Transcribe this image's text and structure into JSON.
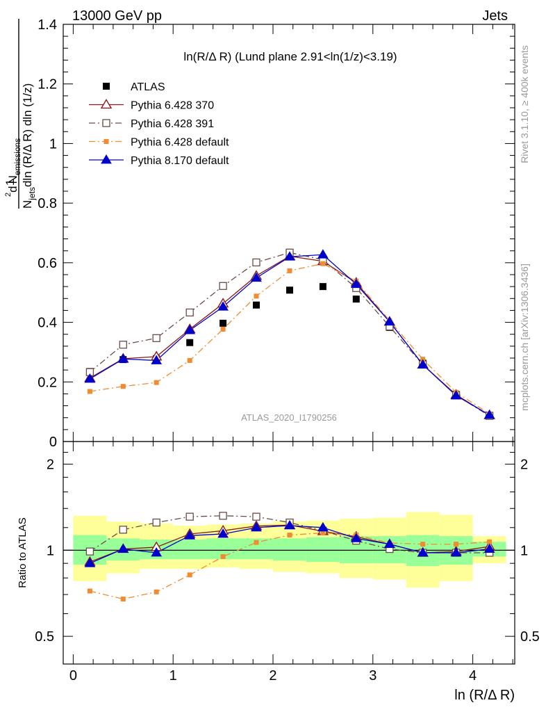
{
  "header": {
    "left": "13000 GeV pp",
    "right": "Jets"
  },
  "subtitle": "ln(R/Δ R) (Lund plane 2.91<ln(1/z)<3.19)",
  "watermark": "ATLAS_2020_I1790256",
  "side_labels": {
    "rivet": "Rivet 3.1.10, ≥ 400k events",
    "mcplots": "mcplots.cern.ch [arXiv:1306.3436]"
  },
  "legend": [
    "ATLAS",
    "Pythia 6.428 370",
    "Pythia 6.428 391",
    "Pythia 6.428 default",
    "Pythia 8.170 default"
  ],
  "colors": {
    "atlas": "#000000",
    "p370": "#8b1a1a",
    "p391": "#6b4a4a",
    "pdef": "#f28a30",
    "p8": "#0000cc",
    "band_inner": "#99ff99",
    "band_outer": "#ffff99"
  },
  "chart_data": [
    {
      "type": "scatter",
      "title": "ln(R/Δ R) (Lund plane 2.91<ln(1/z)<3.19)",
      "xlabel": "ln (R/Δ R)",
      "ylabel": "1/N_jets d²N_emissions / dln(R/Δ R) dln(1/z)",
      "xlim": [
        -0.1,
        4.42
      ],
      "ylim": [
        0,
        1.4
      ],
      "x_ticks": [
        "0",
        "1",
        "2",
        "3",
        "4"
      ],
      "y_ticks": [
        "0",
        "0.2",
        "0.4",
        "0.6",
        "0.8",
        "1",
        "1.2",
        "1.4"
      ],
      "x": [
        0.167,
        0.5,
        0.833,
        1.167,
        1.5,
        1.833,
        2.167,
        2.5,
        2.833,
        3.167,
        3.5,
        3.833,
        4.167
      ],
      "series": [
        {
          "name": "ATLAS",
          "values": [
            0.235,
            0.275,
            0.278,
            0.332,
            0.397,
            0.458,
            0.508,
            0.52,
            0.478,
            0.383,
            0.263,
            0.158,
            0.088
          ]
        },
        {
          "name": "Pythia 6.428 370",
          "values": [
            0.213,
            0.278,
            0.285,
            0.377,
            0.463,
            0.556,
            0.622,
            0.605,
            0.533,
            0.402,
            0.258,
            0.157,
            0.088
          ]
        },
        {
          "name": "Pythia 6.428 391",
          "values": [
            0.233,
            0.325,
            0.347,
            0.433,
            0.522,
            0.601,
            0.634,
            0.61,
            0.515,
            0.386,
            0.258,
            0.155,
            0.086
          ]
        },
        {
          "name": "Pythia 6.428 default",
          "values": [
            0.168,
            0.185,
            0.198,
            0.272,
            0.377,
            0.488,
            0.573,
            0.597,
            0.538,
            0.406,
            0.276,
            0.165,
            0.093
          ]
        },
        {
          "name": "Pythia 8.170 default",
          "values": [
            0.21,
            0.277,
            0.272,
            0.373,
            0.452,
            0.549,
            0.62,
            0.627,
            0.528,
            0.402,
            0.258,
            0.154,
            0.089
          ]
        }
      ]
    },
    {
      "type": "line",
      "ylabel": "Ratio to ATLAS",
      "xlabel": "ln (R/Δ R)",
      "yscale": "log",
      "ylim": [
        0.4,
        2.4
      ],
      "y_ticks": [
        "0.5",
        "1",
        "2"
      ],
      "x": [
        0.167,
        0.5,
        0.833,
        1.167,
        1.5,
        1.833,
        2.167,
        2.5,
        2.833,
        3.167,
        3.5,
        3.833,
        4.167
      ],
      "band_edges": [
        0,
        0.333,
        0.667,
        1.0,
        1.333,
        1.667,
        2.0,
        2.333,
        2.667,
        3.0,
        3.333,
        3.667,
        4.0,
        4.333
      ],
      "band_inner": {
        "low": [
          0.89,
          0.92,
          0.93,
          0.93,
          0.93,
          0.93,
          0.92,
          0.91,
          0.9,
          0.9,
          0.88,
          0.89,
          0.95
        ],
        "high": [
          1.13,
          1.1,
          1.09,
          1.09,
          1.1,
          1.1,
          1.1,
          1.11,
          1.12,
          1.12,
          1.13,
          1.12,
          1.07
        ]
      },
      "band_outer": {
        "low": [
          0.78,
          0.83,
          0.86,
          0.86,
          0.87,
          0.86,
          0.84,
          0.83,
          0.8,
          0.79,
          0.74,
          0.78,
          0.9
        ]
      },
      "band_outer_high": [
        1.32,
        1.26,
        1.24,
        1.22,
        1.23,
        1.24,
        1.26,
        1.27,
        1.29,
        1.3,
        1.36,
        1.33,
        1.12
      ],
      "series": [
        {
          "name": "Pythia 6.428 370",
          "values": [
            0.91,
            1.01,
            1.025,
            1.14,
            1.17,
            1.215,
            1.225,
            1.165,
            1.115,
            1.05,
            0.98,
            0.99,
            1.03
          ]
        },
        {
          "name": "Pythia 6.428 391",
          "values": [
            0.99,
            1.18,
            1.25,
            1.31,
            1.32,
            1.31,
            1.25,
            1.17,
            1.08,
            1.01,
            0.98,
            0.98,
            0.98
          ]
        },
        {
          "name": "Pythia 6.428 default",
          "values": [
            0.72,
            0.675,
            0.715,
            0.82,
            0.95,
            1.065,
            1.13,
            1.15,
            1.13,
            1.06,
            1.05,
            1.05,
            1.07
          ]
        },
        {
          "name": "Pythia 8.170 default",
          "values": [
            0.9,
            1.01,
            0.98,
            1.125,
            1.14,
            1.2,
            1.22,
            1.2,
            1.1,
            1.05,
            0.98,
            0.98,
            1.01
          ]
        }
      ]
    }
  ]
}
